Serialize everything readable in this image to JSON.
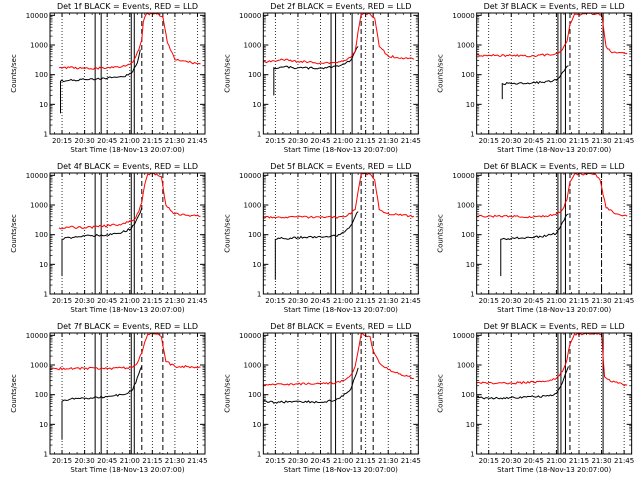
{
  "figure": {
    "background": "#ffffff",
    "colors": {
      "events": "#000000",
      "lld": "#ff0000",
      "axis": "#000000"
    }
  },
  "chart_data": [
    {
      "type": "line",
      "title": "Det 1f BLACK = Events, RED = LLD",
      "xlabel": "Start Time (18-Nov-13 20:07:00)",
      "ylabel": "Counts/sec",
      "yscale": "log",
      "ylim": [
        1,
        12000
      ],
      "xlim": [
        "20:07",
        "21:50"
      ],
      "xticks": [
        "20:15",
        "20:30",
        "20:45",
        "21:00",
        "21:15",
        "21:30",
        "21:45"
      ],
      "yticks": [
        "1",
        "10",
        "100",
        "1000",
        "10000"
      ],
      "dotted_lines": [
        "20:15",
        "20:30",
        "20:45",
        "21:00",
        "21:15",
        "21:30",
        "21:45"
      ],
      "solid_lines": [
        "20:37",
        "20:41",
        "21:01",
        "21:03"
      ],
      "dashed_lines": [
        "21:08",
        "21:22"
      ],
      "series": [
        {
          "color": "#000000",
          "x": [
            "20:14",
            "20:14",
            "20:20",
            "20:30",
            "20:45",
            "20:55",
            "21:01",
            "21:03",
            "21:05",
            "21:06",
            "21:07"
          ],
          "y": [
            5,
            60,
            65,
            68,
            75,
            85,
            110,
            170,
            250,
            400,
            700
          ]
        },
        {
          "color": "#ff0000",
          "x": [
            "20:13",
            "20:20",
            "20:30",
            "20:45",
            "20:55",
            "21:01",
            "21:03",
            "21:06",
            "21:08",
            "21:09",
            "21:11",
            "21:18",
            "21:22",
            "21:25",
            "21:30",
            "21:47"
          ],
          "y": [
            170,
            175,
            160,
            170,
            190,
            250,
            330,
            700,
            1500,
            6000,
            11000,
            11000,
            9000,
            1200,
            320,
            230
          ]
        }
      ]
    },
    {
      "type": "line",
      "title": "Det 2f BLACK = Events, RED = LLD",
      "xlabel": "Start Time (18-Nov-13 20:07:00)",
      "ylabel": "Counts/sec",
      "yscale": "log",
      "ylim": [
        1,
        12000
      ],
      "xlim": [
        "20:07",
        "21:50"
      ],
      "xticks": [
        "20:15",
        "20:30",
        "20:45",
        "21:00",
        "21:15",
        "21:30",
        "21:45"
      ],
      "yticks": [
        "1",
        "10",
        "100",
        "1000",
        "10000"
      ],
      "dotted_lines": [
        "20:15",
        "20:30",
        "20:45",
        "21:00",
        "21:15",
        "21:30",
        "21:45"
      ],
      "solid_lines": [
        "20:52",
        "20:55",
        "21:06"
      ],
      "dashed_lines": [
        "21:12",
        "21:20"
      ],
      "series": [
        {
          "color": "#000000",
          "x": [
            "20:14",
            "20:14",
            "20:20",
            "20:30",
            "20:45",
            "20:55",
            "21:00",
            "21:05",
            "21:08",
            "21:10"
          ],
          "y": [
            20,
            170,
            180,
            170,
            165,
            190,
            230,
            300,
            600,
            900
          ]
        },
        {
          "color": "#ff0000",
          "x": [
            "20:07",
            "20:20",
            "20:30",
            "20:45",
            "20:55",
            "21:00",
            "21:05",
            "21:08",
            "21:10",
            "21:12",
            "21:18",
            "21:21",
            "21:24",
            "21:30",
            "21:47"
          ],
          "y": [
            260,
            320,
            280,
            250,
            260,
            290,
            380,
            600,
            3000,
            11000,
            11000,
            8000,
            900,
            420,
            330
          ]
        }
      ]
    },
    {
      "type": "line",
      "title": "Det 3f BLACK = Events, RED = LLD",
      "xlabel": "Start Time (18-Nov-13 20:07:00)",
      "ylabel": "Counts/sec",
      "yscale": "log",
      "ylim": [
        1,
        12000
      ],
      "xlim": [
        "20:07",
        "21:50"
      ],
      "xticks": [
        "20:15",
        "20:30",
        "20:45",
        "21:00",
        "21:15",
        "21:30",
        "21:45"
      ],
      "yticks": [
        "1",
        "10",
        "100",
        "1000",
        "10000"
      ],
      "dotted_lines": [
        "20:15",
        "20:30",
        "20:45",
        "21:00",
        "21:15",
        "21:30",
        "21:45"
      ],
      "solid_lines": [
        "21:01",
        "21:03",
        "21:06",
        "21:31"
      ],
      "dashed_lines": [
        "21:09"
      ],
      "series": [
        {
          "color": "#000000",
          "x": [
            "20:24",
            "20:24",
            "20:30",
            "20:40",
            "20:50",
            "21:00",
            "21:03",
            "21:06",
            "21:08"
          ],
          "y": [
            15,
            50,
            50,
            50,
            55,
            65,
            100,
            160,
            200
          ]
        },
        {
          "color": "#ff0000",
          "x": [
            "20:07",
            "20:20",
            "20:30",
            "20:45",
            "20:55",
            "21:00",
            "21:04",
            "21:07",
            "21:09",
            "21:12",
            "21:30",
            "21:33",
            "21:36",
            "21:47"
          ],
          "y": [
            450,
            450,
            440,
            430,
            470,
            520,
            700,
            1300,
            5000,
            11000,
            11000,
            900,
            600,
            500
          ]
        }
      ]
    },
    {
      "type": "line",
      "title": "Det 4f BLACK = Events, RED = LLD",
      "xlabel": "Start Time (18-Nov-13 20:07:00)",
      "ylabel": "Counts/sec",
      "yscale": "log",
      "ylim": [
        1,
        12000
      ],
      "xlim": [
        "20:07",
        "21:50"
      ],
      "xticks": [
        "20:15",
        "20:30",
        "20:45",
        "21:00",
        "21:15",
        "21:30",
        "21:45"
      ],
      "yticks": [
        "1",
        "10",
        "100",
        "1000",
        "10000"
      ],
      "dotted_lines": [
        "20:15",
        "20:30",
        "20:45",
        "21:00",
        "21:15",
        "21:30",
        "21:45"
      ],
      "solid_lines": [
        "20:37",
        "20:41",
        "21:01",
        "21:03"
      ],
      "dashed_lines": [
        "21:08",
        "21:22"
      ],
      "series": [
        {
          "color": "#000000",
          "x": [
            "20:15",
            "20:15",
            "20:20",
            "20:30",
            "20:45",
            "20:55",
            "21:01",
            "21:04",
            "21:06",
            "21:08"
          ],
          "y": [
            4,
            70,
            80,
            90,
            100,
            120,
            160,
            280,
            450,
            800
          ]
        },
        {
          "color": "#ff0000",
          "x": [
            "20:13",
            "20:20",
            "20:30",
            "20:45",
            "20:55",
            "21:01",
            "21:04",
            "21:06",
            "21:08",
            "21:10",
            "21:12",
            "21:18",
            "21:21",
            "21:24",
            "21:30",
            "21:47"
          ],
          "y": [
            170,
            180,
            170,
            200,
            230,
            280,
            380,
            600,
            1200,
            5000,
            11000,
            11000,
            9000,
            1000,
            500,
            420
          ]
        }
      ]
    },
    {
      "type": "line",
      "title": "Det 5f BLACK = Events, RED = LLD",
      "xlabel": "Start Time (18-Nov-13 20:07:00)",
      "ylabel": "Counts/sec",
      "yscale": "log",
      "ylim": [
        1,
        12000
      ],
      "xlim": [
        "20:07",
        "21:50"
      ],
      "xticks": [
        "20:15",
        "20:30",
        "20:45",
        "21:00",
        "21:15",
        "21:30",
        "21:45"
      ],
      "yticks": [
        "1",
        "10",
        "100",
        "1000",
        "10000"
      ],
      "dotted_lines": [
        "20:15",
        "20:30",
        "20:45",
        "21:00",
        "21:15",
        "21:30",
        "21:45"
      ],
      "solid_lines": [
        "20:52",
        "20:55",
        "21:06"
      ],
      "dashed_lines": [
        "21:12",
        "21:20"
      ],
      "series": [
        {
          "color": "#000000",
          "x": [
            "20:15",
            "20:15",
            "20:20",
            "20:30",
            "20:45",
            "20:55",
            "21:00",
            "21:05",
            "21:08",
            "21:10"
          ],
          "y": [
            3,
            70,
            75,
            80,
            85,
            90,
            120,
            200,
            400,
            600
          ]
        },
        {
          "color": "#ff0000",
          "x": [
            "20:07",
            "20:20",
            "20:30",
            "20:45",
            "20:55",
            "21:00",
            "21:05",
            "21:08",
            "21:10",
            "21:12",
            "21:18",
            "21:21",
            "21:24",
            "21:30",
            "21:47"
          ],
          "y": [
            380,
            380,
            390,
            380,
            390,
            400,
            500,
            700,
            3000,
            11000,
            11000,
            7000,
            700,
            520,
            420
          ]
        }
      ]
    },
    {
      "type": "line",
      "title": "Det 6f BLACK = Events, RED = LLD",
      "xlabel": "Start Time (18-Nov-13 20:07:00)",
      "ylabel": "Counts/sec",
      "yscale": "log",
      "ylim": [
        1,
        12000
      ],
      "xlim": [
        "20:07",
        "21:50"
      ],
      "xticks": [
        "20:15",
        "20:30",
        "20:45",
        "21:00",
        "21:15",
        "21:30",
        "21:45"
      ],
      "yticks": [
        "1",
        "10",
        "100",
        "1000",
        "10000"
      ],
      "dotted_lines": [
        "20:15",
        "20:30",
        "20:45",
        "21:00",
        "21:15",
        "21:30",
        "21:45"
      ],
      "solid_lines": [
        "21:01",
        "21:03",
        "21:06"
      ],
      "dashed_lines": [
        "21:09",
        "21:30"
      ],
      "series": [
        {
          "color": "#000000",
          "x": [
            "20:23",
            "20:23",
            "20:30",
            "20:40",
            "20:50",
            "21:00",
            "21:03",
            "21:06",
            "21:08"
          ],
          "y": [
            4,
            70,
            75,
            80,
            85,
            110,
            200,
            400,
            500
          ]
        },
        {
          "color": "#ff0000",
          "x": [
            "20:07",
            "20:20",
            "20:30",
            "20:45",
            "20:55",
            "21:00",
            "21:04",
            "21:07",
            "21:09",
            "21:12",
            "21:26",
            "21:29",
            "21:33",
            "21:40",
            "21:47"
          ],
          "y": [
            420,
            420,
            410,
            400,
            430,
            500,
            700,
            1500,
            6000,
            11000,
            11000,
            7000,
            800,
            500,
            420
          ]
        }
      ]
    },
    {
      "type": "line",
      "title": "Det 7f BLACK = Events, RED = LLD",
      "xlabel": "Start Time (18-Nov-13 20:07:00)",
      "ylabel": "Counts/sec",
      "yscale": "log",
      "ylim": [
        1,
        12000
      ],
      "xlim": [
        "20:07",
        "21:50"
      ],
      "xticks": [
        "20:15",
        "20:30",
        "20:45",
        "21:00",
        "21:15",
        "21:30",
        "21:45"
      ],
      "yticks": [
        "1",
        "10",
        "100",
        "1000",
        "10000"
      ],
      "dotted_lines": [
        "20:15",
        "20:30",
        "20:45",
        "21:00",
        "21:15",
        "21:30",
        "21:45"
      ],
      "solid_lines": [
        "20:37",
        "20:41",
        "21:01",
        "21:03"
      ],
      "dashed_lines": [
        "21:08",
        "21:22"
      ],
      "series": [
        {
          "color": "#000000",
          "x": [
            "20:15",
            "20:15",
            "20:20",
            "20:30",
            "20:45",
            "20:55",
            "21:01",
            "21:04",
            "21:06",
            "21:08"
          ],
          "y": [
            3,
            60,
            70,
            75,
            85,
            100,
            130,
            250,
            500,
            900
          ]
        },
        {
          "color": "#ff0000",
          "x": [
            "20:07",
            "20:20",
            "20:30",
            "20:45",
            "20:55",
            "21:01",
            "21:04",
            "21:06",
            "21:08",
            "21:10",
            "21:12",
            "21:18",
            "21:21",
            "21:24",
            "21:30",
            "21:47"
          ],
          "y": [
            750,
            750,
            780,
            760,
            800,
            850,
            1000,
            1500,
            2500,
            6000,
            11000,
            11000,
            9000,
            1300,
            900,
            850
          ]
        }
      ]
    },
    {
      "type": "line",
      "title": "Det 8f BLACK = Events, RED = LLD",
      "xlabel": "Start Time (18-Nov-13 20:07:00)",
      "ylabel": "Counts/sec",
      "yscale": "log",
      "ylim": [
        1,
        12000
      ],
      "xlim": [
        "20:07",
        "21:50"
      ],
      "xticks": [
        "20:15",
        "20:30",
        "20:45",
        "21:00",
        "21:15",
        "21:30",
        "21:45"
      ],
      "yticks": [
        "1",
        "10",
        "100",
        "1000",
        "10000"
      ],
      "dotted_lines": [
        "20:15",
        "20:30",
        "20:45",
        "21:00",
        "21:15",
        "21:30",
        "21:45"
      ],
      "solid_lines": [
        "20:52",
        "20:55",
        "21:06"
      ],
      "dashed_lines": [
        "21:12",
        "21:20"
      ],
      "series": [
        {
          "color": "#000000",
          "x": [
            "20:07",
            "20:15",
            "20:30",
            "20:45",
            "20:55",
            "21:00",
            "21:05",
            "21:08",
            "21:10"
          ],
          "y": [
            60,
            55,
            60,
            55,
            65,
            90,
            150,
            400,
            800
          ]
        },
        {
          "color": "#ff0000",
          "x": [
            "20:07",
            "20:20",
            "20:30",
            "20:45",
            "20:55",
            "21:00",
            "21:05",
            "21:08",
            "21:10",
            "21:12",
            "21:18",
            "21:20",
            "21:24",
            "21:30",
            "21:47"
          ],
          "y": [
            210,
            220,
            230,
            240,
            250,
            300,
            450,
            900,
            3000,
            11000,
            9000,
            3000,
            1200,
            700,
            350
          ]
        }
      ]
    },
    {
      "type": "line",
      "title": "Det 9f BLACK = Events, RED = LLD",
      "xlabel": "Start Time (18-Nov-13 20:07:00)",
      "ylabel": "Counts/sec",
      "yscale": "log",
      "ylim": [
        1,
        12000
      ],
      "xlim": [
        "20:07",
        "21:50"
      ],
      "xticks": [
        "20:15",
        "20:30",
        "20:45",
        "21:00",
        "21:15",
        "21:30",
        "21:45"
      ],
      "yticks": [
        "1",
        "10",
        "100",
        "1000",
        "10000"
      ],
      "dotted_lines": [
        "20:15",
        "20:30",
        "20:45",
        "21:00",
        "21:15",
        "21:30",
        "21:45"
      ],
      "solid_lines": [
        "21:01",
        "21:03",
        "21:06",
        "21:31"
      ],
      "dashed_lines": [
        "21:09"
      ],
      "series": [
        {
          "color": "#000000",
          "x": [
            "20:07",
            "20:15",
            "20:30",
            "20:45",
            "20:55",
            "21:00",
            "21:03",
            "21:06",
            "21:08"
          ],
          "y": [
            80,
            75,
            80,
            85,
            90,
            110,
            200,
            500,
            900
          ]
        },
        {
          "color": "#ff0000",
          "x": [
            "20:07",
            "20:20",
            "20:30",
            "20:45",
            "20:55",
            "21:00",
            "21:04",
            "21:07",
            "21:09",
            "21:12",
            "21:30",
            "21:32",
            "21:36",
            "21:47"
          ],
          "y": [
            250,
            240,
            250,
            260,
            290,
            350,
            600,
            1500,
            5000,
            11000,
            11000,
            400,
            280,
            210
          ]
        }
      ]
    }
  ]
}
